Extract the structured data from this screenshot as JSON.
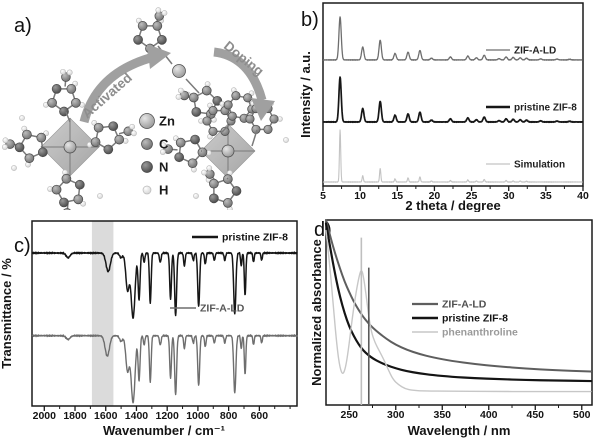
{
  "panels": {
    "a": {
      "label": "a)",
      "arrow_activated": "Activated",
      "arrow_doping": "Doping",
      "atom_legend": [
        {
          "symbol": "Zn"
        },
        {
          "symbol": "C"
        },
        {
          "symbol": "N"
        },
        {
          "symbol": "H"
        }
      ]
    },
    "b": {
      "label": "b)"
    },
    "c": {
      "label": "c)"
    },
    "d": {
      "label": "d)"
    }
  },
  "colors": {
    "axis": "#1a1a1a",
    "black_trace": "#161616",
    "gray_trace": "#6e6e6e",
    "light_trace": "#c3c3c3",
    "highlight_band": "#d5d5d5",
    "arrow": "#a0a0a0",
    "atom_zn": "#b5b5b5",
    "atom_c": "#8f8f8f",
    "atom_n": "#5f5f5f",
    "atom_h": "#f0f0f0"
  },
  "chart_data": [
    {
      "panel": "b",
      "type": "line",
      "kind": "xrd",
      "title": "",
      "xlabel": "2 theta / degree",
      "ylabel": "Intensity / a.u.",
      "xlim": [
        5,
        40
      ],
      "xticks": [
        5,
        10,
        15,
        20,
        25,
        30,
        35,
        40
      ],
      "minor_step": 2.5,
      "grid": false,
      "legend_position": "inside-right",
      "series": [
        {
          "name": "ZIF-A-LD",
          "color": "#6e6e6e",
          "line_width": 1.3,
          "baseline": 0.311,
          "amplitude": 0.235,
          "peak_sigma": 0.22,
          "peaks": [
            [
              7.3,
              1.0
            ],
            [
              10.35,
              0.3
            ],
            [
              12.7,
              0.46
            ],
            [
              14.7,
              0.15
            ],
            [
              16.45,
              0.18
            ],
            [
              18.05,
              0.22
            ],
            [
              19.6,
              0.04
            ],
            [
              22.15,
              0.07
            ],
            [
              24.5,
              0.09
            ],
            [
              25.65,
              0.05
            ],
            [
              26.7,
              0.11
            ],
            [
              28.7,
              0.03
            ],
            [
              29.65,
              0.07
            ],
            [
              30.6,
              0.06
            ],
            [
              31.55,
              0.05
            ],
            [
              32.4,
              0.04
            ],
            [
              34.3,
              0.025
            ],
            [
              36.5,
              0.02
            ],
            [
              38.2,
              0.015
            ]
          ]
        },
        {
          "name": "pristine ZIF-8",
          "color": "#161616",
          "line_width": 1.7,
          "baseline": 0.65,
          "amplitude": 0.245,
          "peak_sigma": 0.22,
          "peaks": [
            [
              7.3,
              1.0
            ],
            [
              10.35,
              0.3
            ],
            [
              12.7,
              0.46
            ],
            [
              14.7,
              0.15
            ],
            [
              16.45,
              0.18
            ],
            [
              18.05,
              0.22
            ],
            [
              19.6,
              0.04
            ],
            [
              22.15,
              0.07
            ],
            [
              24.5,
              0.09
            ],
            [
              25.65,
              0.05
            ],
            [
              26.7,
              0.11
            ],
            [
              28.7,
              0.03
            ],
            [
              29.65,
              0.07
            ],
            [
              30.6,
              0.06
            ],
            [
              31.55,
              0.05
            ],
            [
              32.4,
              0.04
            ],
            [
              34.3,
              0.025
            ],
            [
              36.5,
              0.02
            ],
            [
              38.2,
              0.015
            ]
          ]
        },
        {
          "name": "Simulation",
          "color": "#c3c3c3",
          "line_width": 1.1,
          "baseline": 0.978,
          "amplitude": 0.285,
          "peak_sigma": 0.12,
          "peaks": [
            [
              7.3,
              1.0
            ],
            [
              10.35,
              0.12
            ],
            [
              12.7,
              0.26
            ],
            [
              14.7,
              0.06
            ],
            [
              16.45,
              0.08
            ],
            [
              18.05,
              0.1
            ],
            [
              19.6,
              0.02
            ],
            [
              22.15,
              0.03
            ],
            [
              24.5,
              0.04
            ],
            [
              25.65,
              0.02
            ],
            [
              26.7,
              0.05
            ],
            [
              29.65,
              0.03
            ],
            [
              30.6,
              0.02
            ],
            [
              31.55,
              0.02
            ],
            [
              32.4,
              0.015
            ]
          ]
        }
      ]
    },
    {
      "panel": "c",
      "type": "line",
      "kind": "ftir",
      "title": "",
      "xlabel": "Wavenumber / cm⁻¹",
      "ylabel": "Transmittance / %",
      "xlim": [
        2080,
        355
      ],
      "xticks": [
        2000,
        1800,
        1600,
        1400,
        1200,
        1000,
        800,
        600
      ],
      "minor_step": 100,
      "grid": false,
      "highlight_band": {
        "from": 1690,
        "to": 1550,
        "color": "#d5d5d5"
      },
      "series": [
        {
          "name": "pristine ZIF-8",
          "color": "#161616",
          "line_width": 1.5,
          "baseline": 0.173,
          "bands": [
            [
              1845,
              0.025,
              18
            ],
            [
              1584,
              0.1,
              20
            ],
            [
              1500,
              0.025,
              14
            ],
            [
              1458,
              0.2,
              16
            ],
            [
              1422,
              0.35,
              18
            ],
            [
              1383,
              0.25,
              9
            ],
            [
              1350,
              0.05,
              7
            ],
            [
              1310,
              0.27,
              8
            ],
            [
              1245,
              0.05,
              8
            ],
            [
              1178,
              0.25,
              8
            ],
            [
              1145,
              0.34,
              9
            ],
            [
              1088,
              0.07,
              7
            ],
            [
              1030,
              0.04,
              7
            ],
            [
              995,
              0.29,
              9
            ],
            [
              952,
              0.06,
              7
            ],
            [
              893,
              0.04,
              7
            ],
            [
              825,
              0.04,
              7
            ],
            [
              760,
              0.33,
              10
            ],
            [
              718,
              0.07,
              6
            ],
            [
              693,
              0.23,
              7
            ],
            [
              638,
              0.05,
              6
            ],
            [
              585,
              0.04,
              6
            ]
          ]
        },
        {
          "name": "ZIF-A-LD",
          "color": "#6e6e6e",
          "line_width": 1.4,
          "baseline": 0.62,
          "bands": [
            [
              1845,
              0.02,
              18
            ],
            [
              1590,
              0.11,
              20
            ],
            [
              1500,
              0.03,
              14
            ],
            [
              1458,
              0.19,
              16
            ],
            [
              1422,
              0.36,
              18
            ],
            [
              1383,
              0.24,
              9
            ],
            [
              1350,
              0.05,
              7
            ],
            [
              1310,
              0.25,
              8
            ],
            [
              1245,
              0.05,
              8
            ],
            [
              1178,
              0.23,
              8
            ],
            [
              1145,
              0.32,
              9
            ],
            [
              1088,
              0.07,
              7
            ],
            [
              1030,
              0.04,
              7
            ],
            [
              995,
              0.27,
              9
            ],
            [
              952,
              0.06,
              7
            ],
            [
              893,
              0.04,
              7
            ],
            [
              825,
              0.04,
              7
            ],
            [
              760,
              0.31,
              10
            ],
            [
              718,
              0.07,
              6
            ],
            [
              693,
              0.21,
              7
            ],
            [
              638,
              0.05,
              6
            ],
            [
              585,
              0.04,
              6
            ]
          ]
        }
      ]
    },
    {
      "panel": "d",
      "type": "line",
      "kind": "uvvis",
      "title": "",
      "xlabel": "Wavelength / nm",
      "ylabel": "Normalized absorbance",
      "xlim": [
        225,
        511
      ],
      "ylim": [
        0,
        1.05
      ],
      "xticks": [
        250,
        300,
        350,
        400,
        450,
        500
      ],
      "minor_step": 25,
      "grid": false,
      "legend_position": "inside-center-right",
      "vlines": [
        {
          "x": 263,
          "top": 0.95,
          "color": "#bfbfbf"
        },
        {
          "x": 271,
          "top": 0.78,
          "color": "#5a5a5a"
        }
      ],
      "series": [
        {
          "name": "ZIF-A-LD",
          "color": "#5e5e5e",
          "line_width": 2.0,
          "points": [
            [
              225,
              1.05
            ],
            [
              228,
              0.99
            ],
            [
              232,
              0.91
            ],
            [
              236,
              0.84
            ],
            [
              240,
              0.775
            ],
            [
              245,
              0.7
            ],
            [
              250,
              0.64
            ],
            [
              255,
              0.585
            ],
            [
              260,
              0.54
            ],
            [
              265,
              0.5
            ],
            [
              270,
              0.467
            ],
            [
              276,
              0.435
            ],
            [
              282,
              0.408
            ],
            [
              290,
              0.375
            ],
            [
              300,
              0.342
            ],
            [
              312,
              0.313
            ],
            [
              325,
              0.29
            ],
            [
              340,
              0.27
            ],
            [
              360,
              0.25
            ],
            [
              385,
              0.232
            ],
            [
              410,
              0.219
            ],
            [
              440,
              0.207
            ],
            [
              470,
              0.198
            ],
            [
              510,
              0.19
            ]
          ]
        },
        {
          "name": "pristine ZIF-8",
          "color": "#141414",
          "line_width": 2.2,
          "points": [
            [
              225,
              1.03
            ],
            [
              228,
              0.94
            ],
            [
              232,
              0.82
            ],
            [
              236,
              0.71
            ],
            [
              240,
              0.615
            ],
            [
              245,
              0.52
            ],
            [
              250,
              0.445
            ],
            [
              255,
              0.39
            ],
            [
              260,
              0.345
            ],
            [
              265,
              0.31
            ],
            [
              270,
              0.285
            ],
            [
              276,
              0.262
            ],
            [
              282,
              0.245
            ],
            [
              290,
              0.226
            ],
            [
              300,
              0.208
            ],
            [
              312,
              0.192
            ],
            [
              325,
              0.18
            ],
            [
              340,
              0.17
            ],
            [
              360,
              0.16
            ],
            [
              385,
              0.152
            ],
            [
              410,
              0.147
            ],
            [
              440,
              0.142
            ],
            [
              470,
              0.139
            ],
            [
              510,
              0.136
            ]
          ]
        },
        {
          "name": "phenanthroline",
          "color": "#c7c7c7",
          "line_width": 1.4,
          "points": [
            [
              225,
              0.99
            ],
            [
              229,
              0.8
            ],
            [
              233,
              0.55
            ],
            [
              237,
              0.32
            ],
            [
              240,
              0.21
            ],
            [
              243,
              0.17
            ],
            [
              246,
              0.21
            ],
            [
              249,
              0.31
            ],
            [
              252,
              0.44
            ],
            [
              255,
              0.56
            ],
            [
              258,
              0.66
            ],
            [
              261,
              0.74
            ],
            [
              263,
              0.77
            ],
            [
              265,
              0.74
            ],
            [
              268,
              0.63
            ],
            [
              271,
              0.5
            ],
            [
              274,
              0.41
            ],
            [
              278,
              0.35
            ],
            [
              282,
              0.31
            ],
            [
              287,
              0.26
            ],
            [
              292,
              0.2
            ],
            [
              297,
              0.145
            ],
            [
              303,
              0.115
            ],
            [
              310,
              0.092
            ],
            [
              318,
              0.083
            ],
            [
              330,
              0.08
            ],
            [
              360,
              0.078
            ],
            [
              400,
              0.077
            ],
            [
              450,
              0.076
            ],
            [
              510,
              0.076
            ]
          ]
        }
      ]
    }
  ]
}
